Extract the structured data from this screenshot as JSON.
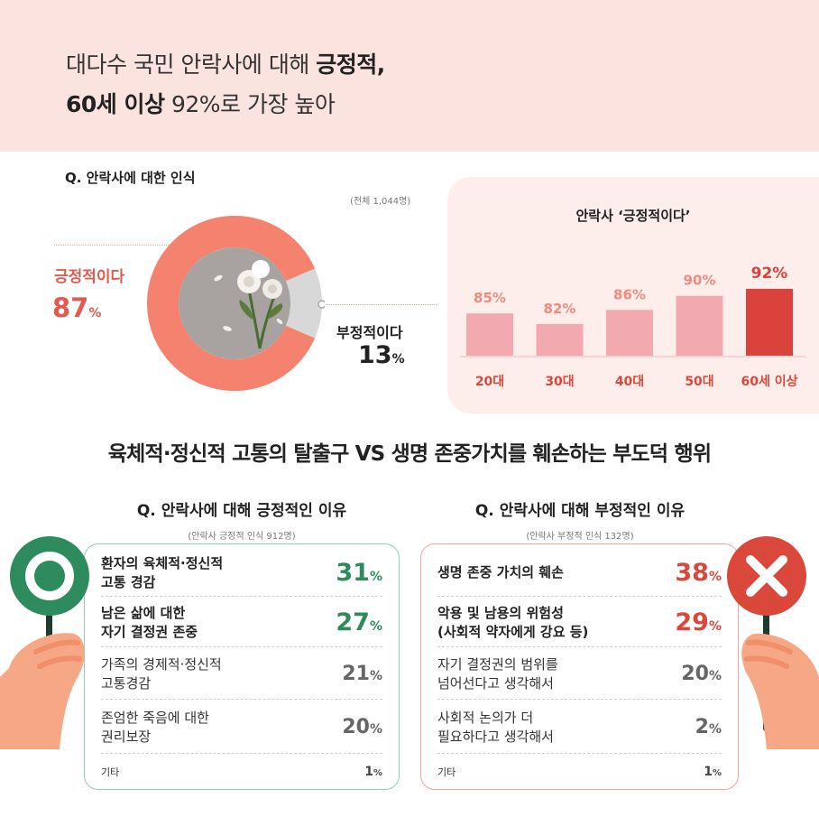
{
  "header": {
    "line1_a": "대다수 국민 안락사에 대해 ",
    "line1_b": "긍정적,",
    "line2_a": "60세 이상",
    "line2_b": "  92%로 가장 높아"
  },
  "overall": {
    "question": "Q. 안락사에 대한 인식",
    "note": "(전체 1,044명)",
    "positive_label": "긍정적이다",
    "positive_value": "87",
    "negative_label": "부정적이다",
    "negative_value": "13",
    "pct_unit": "%"
  },
  "section_title": "육체적·정신적 고통의 탈출구 VS 생명 존중가치를 훼손하는 부도덕 행위",
  "positive_reasons": {
    "question": "Q. 안락사에 대해 긍정적인 이유",
    "note": "(안락사 긍정적 인식 912명)",
    "items": [
      {
        "label": "환자의 육체적·정신적\n고통 경감",
        "value": "31"
      },
      {
        "label": "남은 삶에 대한\n자기 결정권 존중",
        "value": "27"
      },
      {
        "label": "가족의 경제적·정신적\n 고통경감",
        "value": "21"
      },
      {
        "label": "존엄한 죽음에 대한\n권리보장",
        "value": "20"
      },
      {
        "label": "기타",
        "value": "1"
      }
    ]
  },
  "negative_reasons": {
    "question": "Q. 안락사에 대해 부정적인 이유",
    "note": "(안락사 부정적 인식 132명)",
    "items": [
      {
        "label": "생명 존중 가치의 훼손",
        "value": "38"
      },
      {
        "label": "악용 및 남용의 위험성\n(사회적 약자에게 강요 등)",
        "value": "29"
      },
      {
        "label": "자기 결정권의 범위를\n넘어선다고 생각해서",
        "value": "20"
      },
      {
        "label": "사회적 논의가 더\n필요하다고 생각해서",
        "value": "2"
      },
      {
        "label": "기타",
        "value": "1"
      }
    ]
  },
  "colors": {
    "positive": "#f4826e",
    "negative": "#d8d8d8",
    "bar_light": "#f3a9b0",
    "bar_highlight": "#d9433b",
    "green": "#2d8b5e",
    "red": "#d9483b"
  },
  "chart_data": [
    {
      "type": "pie",
      "title": "Q. 안락사에 대한 인식",
      "categories": [
        "긍정적이다",
        "부정적이다"
      ],
      "values": [
        87,
        13
      ]
    },
    {
      "type": "bar",
      "title": "안락사 ‘긍정적이다’",
      "categories": [
        "20대",
        "30대",
        "40대",
        "50대",
        "60세 이상"
      ],
      "values": [
        85,
        82,
        86,
        90,
        92
      ],
      "value_labels": [
        "85%",
        "82%",
        "86%",
        "90%",
        "92%"
      ],
      "highlight_index": 4
    }
  ]
}
